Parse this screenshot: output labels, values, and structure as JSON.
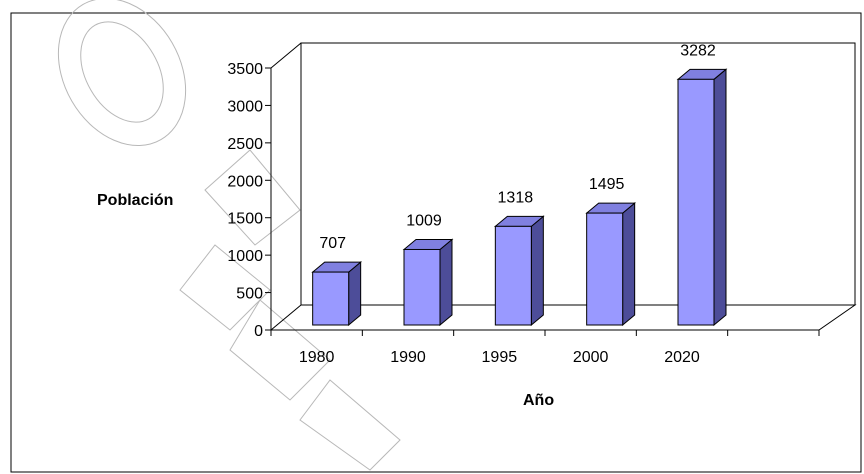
{
  "chart_data": {
    "type": "bar",
    "categories": [
      "1980",
      "1990",
      "1995",
      "2000",
      "2020"
    ],
    "values": [
      707,
      1009,
      1318,
      1495,
      3282
    ],
    "data_labels": [
      "707",
      "1009",
      "1318",
      "1495",
      "3282"
    ],
    "title": "",
    "xlabel": "Año",
    "ylabel": "Población",
    "ylim": [
      0,
      3500
    ],
    "yticks": [
      "0",
      "500",
      "1000",
      "1500",
      "2000",
      "2500",
      "3000",
      "3500"
    ],
    "grid": false,
    "legend": "none",
    "style": "3d-column"
  },
  "colors": {
    "bar_front": "#9999ff",
    "bar_top": "#8080e0",
    "bar_side": "#4d4d99",
    "bar_stroke": "#000000",
    "axis": "#000000",
    "border": "#000000",
    "watermark": "#b0b0b0"
  }
}
